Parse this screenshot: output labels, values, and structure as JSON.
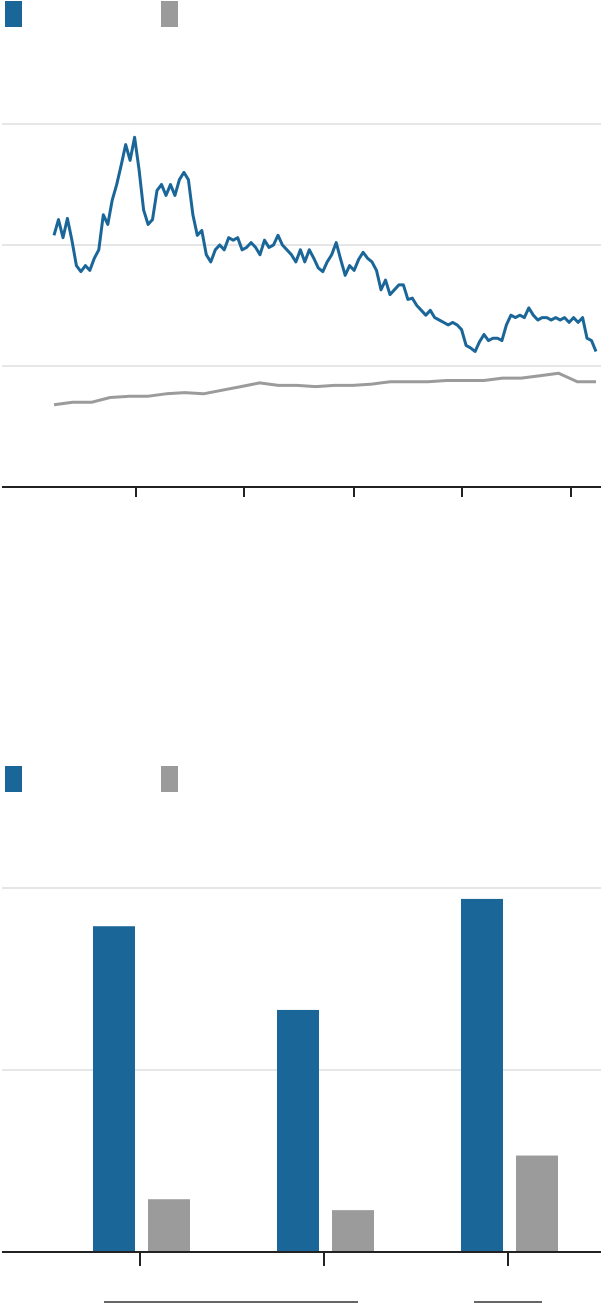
{
  "colors": {
    "primary": "#1b6698",
    "secondary": "#9b9b9b",
    "grid": "#e6e6e6",
    "axis": "#222222"
  },
  "chart_data": [
    {
      "type": "line",
      "title": "",
      "xlabel": "",
      "ylabel": "",
      "ylim": [
        0,
        3
      ],
      "grid": true,
      "legend": "top-left",
      "series": [
        {
          "color": "#1b6698",
          "values": [
            2.08,
            2.21,
            2.06,
            2.22,
            2.04,
            1.83,
            1.78,
            1.83,
            1.79,
            1.89,
            1.96,
            2.25,
            2.17,
            2.37,
            2.5,
            2.66,
            2.83,
            2.7,
            2.89,
            2.62,
            2.29,
            2.17,
            2.21,
            2.45,
            2.5,
            2.41,
            2.5,
            2.41,
            2.54,
            2.6,
            2.54,
            2.25,
            2.08,
            2.12,
            1.92,
            1.86,
            1.96,
            2.0,
            1.96,
            2.06,
            2.04,
            2.06,
            1.96,
            1.98,
            2.02,
            1.98,
            1.92,
            2.04,
            1.98,
            2.0,
            2.08,
            2.0,
            1.96,
            1.92,
            1.86,
            1.96,
            1.86,
            1.96,
            1.89,
            1.81,
            1.78,
            1.86,
            1.92,
            2.02,
            1.88,
            1.75,
            1.83,
            1.79,
            1.88,
            1.94,
            1.89,
            1.86,
            1.79,
            1.63,
            1.71,
            1.59,
            1.63,
            1.67,
            1.67,
            1.55,
            1.56,
            1.5,
            1.46,
            1.42,
            1.46,
            1.4,
            1.38,
            1.36,
            1.34,
            1.36,
            1.34,
            1.3,
            1.17,
            1.15,
            1.12,
            1.2,
            1.26,
            1.21,
            1.23,
            1.23,
            1.21,
            1.34,
            1.42,
            1.4,
            1.42,
            1.4,
            1.48,
            1.42,
            1.38,
            1.4,
            1.4,
            1.38,
            1.4,
            1.38,
            1.4,
            1.36,
            1.4,
            1.36,
            1.4,
            1.23,
            1.21,
            1.12
          ]
        },
        {
          "color": "#9b9b9b",
          "values": [
            0.68,
            0.7,
            0.7,
            0.74,
            0.75,
            0.75,
            0.77,
            0.78,
            0.77,
            0.8,
            0.83,
            0.86,
            0.84,
            0.84,
            0.83,
            0.84,
            0.84,
            0.85,
            0.87,
            0.87,
            0.87,
            0.88,
            0.88,
            0.88,
            0.9,
            0.9,
            0.92,
            0.94,
            0.87,
            0.87
          ]
        }
      ]
    },
    {
      "type": "bar",
      "title": "",
      "xlabel": "",
      "ylabel": "",
      "ylim": [
        0,
        2
      ],
      "grid": true,
      "legend": "top-left",
      "categories": [
        "",
        "",
        ""
      ],
      "series": [
        {
          "color": "#1b6698",
          "values": [
            1.79,
            1.33,
            1.94
          ]
        },
        {
          "color": "#9b9b9b",
          "values": [
            0.29,
            0.23,
            0.53
          ]
        }
      ]
    }
  ]
}
